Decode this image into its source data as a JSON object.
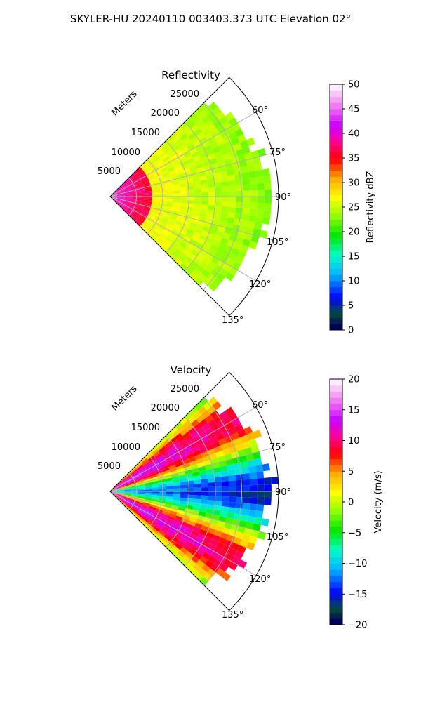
{
  "title": "SKYLER-HU  20240110  003403.373 UTC Elevation 02°",
  "chart_data": [
    {
      "type": "heatmap",
      "projection": "polar-sector",
      "title": "Reflectivity",
      "range_label": "Meters",
      "range_ticks": [
        "5000",
        "10000",
        "15000",
        "20000",
        "25000"
      ],
      "azimuth_ticks": [
        "60°",
        "75°",
        "90°",
        "105°",
        "120°",
        "135°"
      ],
      "azimuth_range": [
        45,
        135
      ],
      "range_max": 32000,
      "grid": true,
      "colorbar": {
        "label": "Reflectivity dBZ",
        "min": 0,
        "max": 50,
        "ticks": [
          "0",
          "5",
          "10",
          "15",
          "20",
          "25",
          "30",
          "35",
          "40",
          "45",
          "50"
        ]
      }
    },
    {
      "type": "heatmap",
      "projection": "polar-sector",
      "title": "Velocity",
      "range_label": "Meters",
      "range_ticks": [
        "5000",
        "10000",
        "15000",
        "20000",
        "25000"
      ],
      "azimuth_ticks": [
        "60°",
        "75°",
        "90°",
        "105°",
        "120°",
        "135°"
      ],
      "azimuth_range": [
        45,
        135
      ],
      "range_max": 32000,
      "grid": true,
      "colorbar": {
        "label": "Velocity (m/s)",
        "min": -20,
        "max": 20,
        "ticks": [
          "−20",
          "−15",
          "−10",
          "−5",
          "0",
          "5",
          "10",
          "15",
          "20"
        ]
      }
    }
  ]
}
